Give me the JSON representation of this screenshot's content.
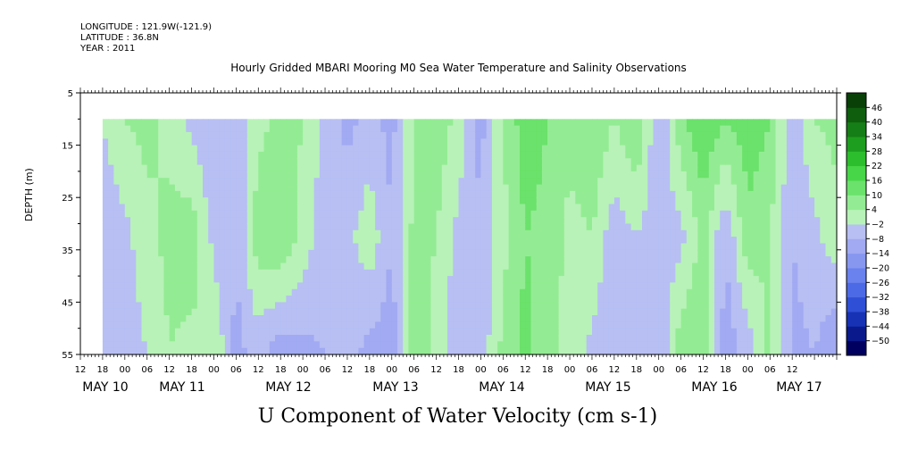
{
  "header": {
    "longitude": "LONGITUDE : 121.9W(-121.9)",
    "latitude": "LATITUDE : 36.8N",
    "year": "YEAR : 2011"
  },
  "title": "Hourly Gridded MBARI Mooring M0 Sea Water Temperature and Salinity Observations",
  "bottom_label": "U Component of Water Velocity (cm s-1)",
  "chart_data": {
    "type": "heatmap",
    "title": "Hourly Gridded MBARI Mooring M0 Sea Water Temperature and Salinity Observations",
    "xlabel": "",
    "ylabel": "DEPTH (m)",
    "colorbar_label": "U Component of Water Velocity (cm s-1)",
    "y_range": [
      5,
      55
    ],
    "y_inverted": true,
    "y_ticks": [
      5,
      15,
      25,
      35,
      45,
      55
    ],
    "data_depth_range": [
      10,
      55
    ],
    "x_range_hours": [
      12,
      216
    ],
    "x_start_label": "MAY 10 12",
    "x_hour_ticks": [
      "12",
      "18",
      "00",
      "06",
      "12",
      "18",
      "00",
      "06",
      "12",
      "18",
      "00",
      "06",
      "12",
      "18",
      "00",
      "06",
      "12",
      "18",
      "00",
      "06",
      "12",
      "18",
      "00",
      "06",
      "12",
      "18",
      "00",
      "06",
      "12",
      "18",
      "00",
      "06",
      "12"
    ],
    "day_labels": [
      "MAY 10",
      "MAY 11",
      "MAY 12",
      "MAY 13",
      "MAY 14",
      "MAY 15",
      "MAY 16",
      "MAY 17"
    ],
    "data_start_hour": 18,
    "colorbar_levels": [
      -50,
      -44,
      -38,
      -32,
      -26,
      -20,
      -14,
      -8,
      -2,
      4,
      10,
      16,
      22,
      28,
      34,
      40,
      46
    ],
    "colorbar_colors": [
      "#000060",
      "#0a1a8c",
      "#1732b4",
      "#2f4fd6",
      "#4d6ae6",
      "#6a82ee",
      "#8797f0",
      "#a1aaf2",
      "#b7bff3",
      "#b8f2b8",
      "#93ec93",
      "#6be26b",
      "#47d647",
      "#2cbe2c",
      "#1e9e1e",
      "#167e16",
      "#0e5e0e",
      "#084008"
    ],
    "column_series": [
      {
        "hour": 18,
        "top": -2,
        "mid": -6,
        "bot": -8
      },
      {
        "hour": 24,
        "top": 4,
        "mid": -4,
        "bot": -6
      },
      {
        "hour": 30,
        "top": 6,
        "mid": 2,
        "bot": -2
      },
      {
        "hour": 36,
        "top": 2,
        "mid": 6,
        "bot": 4
      },
      {
        "hour": 42,
        "top": -4,
        "mid": 8,
        "bot": 2
      },
      {
        "hour": 48,
        "top": -8,
        "mid": -4,
        "bot": 4
      },
      {
        "hour": 54,
        "top": -6,
        "mid": -8,
        "bot": -10
      },
      {
        "hour": 60,
        "top": 2,
        "mid": 8,
        "bot": -6
      },
      {
        "hour": 66,
        "top": 6,
        "mid": 10,
        "bot": -12
      },
      {
        "hour": 72,
        "top": 4,
        "mid": 2,
        "bot": -10
      },
      {
        "hour": 78,
        "top": -4,
        "mid": -6,
        "bot": -8
      },
      {
        "hour": 84,
        "top": -10,
        "mid": -4,
        "bot": -6
      },
      {
        "hour": 90,
        "top": -6,
        "mid": 2,
        "bot": -10
      },
      {
        "hour": 96,
        "top": -10,
        "mid": -8,
        "bot": -12
      },
      {
        "hour": 102,
        "top": 4,
        "mid": 6,
        "bot": 8
      },
      {
        "hour": 108,
        "top": 8,
        "mid": 4,
        "bot": 2
      },
      {
        "hour": 114,
        "top": 2,
        "mid": -4,
        "bot": -8
      },
      {
        "hour": 120,
        "top": -10,
        "mid": -8,
        "bot": -6
      },
      {
        "hour": 126,
        "top": 4,
        "mid": 2,
        "bot": 6
      },
      {
        "hour": 132,
        "top": 14,
        "mid": 10,
        "bot": 12
      },
      {
        "hour": 138,
        "top": 10,
        "mid": 8,
        "bot": 6
      },
      {
        "hour": 144,
        "top": 6,
        "mid": 2,
        "bot": 2
      },
      {
        "hour": 150,
        "top": 10,
        "mid": 4,
        "bot": -4
      },
      {
        "hour": 156,
        "top": 4,
        "mid": -6,
        "bot": -8
      },
      {
        "hour": 162,
        "top": 10,
        "mid": -2,
        "bot": -4
      },
      {
        "hour": 168,
        "top": -8,
        "mid": -6,
        "bot": -8
      },
      {
        "hour": 174,
        "top": 8,
        "mid": -4,
        "bot": 8
      },
      {
        "hour": 180,
        "top": 16,
        "mid": 6,
        "bot": 10
      },
      {
        "hour": 186,
        "top": 10,
        "mid": -8,
        "bot": -12
      },
      {
        "hour": 192,
        "top": 14,
        "mid": 8,
        "bot": -6
      },
      {
        "hour": 198,
        "top": 10,
        "mid": 4,
        "bot": 6
      },
      {
        "hour": 204,
        "top": -6,
        "mid": -8,
        "bot": -10
      },
      {
        "hour": 210,
        "top": 4,
        "mid": -4,
        "bot": -8
      },
      {
        "hour": 216,
        "top": 6,
        "mid": 2,
        "bot": -14
      }
    ]
  }
}
